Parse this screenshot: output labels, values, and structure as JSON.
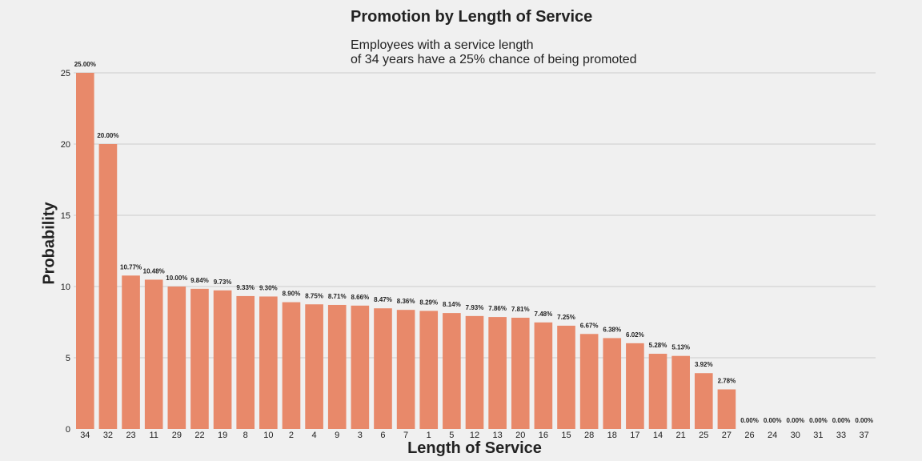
{
  "chart_data": {
    "type": "bar",
    "title": "Promotion by Length of Service",
    "subtitle_lines": [
      "Employees with a service length",
      "of 34 years have a 25% chance of being promoted"
    ],
    "xlabel": "Length of Service",
    "ylabel": "Probability",
    "ylim": [
      0,
      25
    ],
    "yticks": [
      0,
      5,
      10,
      15,
      20,
      25
    ],
    "grid": "horizontal",
    "bar_color": "#e8896a",
    "categories": [
      "34",
      "32",
      "23",
      "11",
      "29",
      "22",
      "19",
      "8",
      "10",
      "2",
      "4",
      "9",
      "3",
      "6",
      "7",
      "1",
      "5",
      "12",
      "13",
      "20",
      "16",
      "15",
      "28",
      "18",
      "17",
      "14",
      "21",
      "25",
      "27",
      "26",
      "24",
      "30",
      "31",
      "33",
      "37"
    ],
    "values": [
      25.0,
      20.0,
      10.77,
      10.48,
      10.0,
      9.84,
      9.73,
      9.33,
      9.3,
      8.9,
      8.75,
      8.71,
      8.66,
      8.47,
      8.36,
      8.29,
      8.14,
      7.93,
      7.86,
      7.81,
      7.48,
      7.25,
      6.67,
      6.38,
      6.02,
      5.28,
      5.13,
      3.92,
      2.78,
      0.0,
      0.0,
      0.0,
      0.0,
      0.0,
      0.0
    ],
    "data_labels": [
      "25.00%",
      "20.00%",
      "10.77%",
      "10.48%",
      "10.00%",
      "9.84%",
      "9.73%",
      "9.33%",
      "9.30%",
      "8.90%",
      "8.75%",
      "8.71%",
      "8.66%",
      "8.47%",
      "8.36%",
      "8.29%",
      "8.14%",
      "7.93%",
      "7.86%",
      "7.81%",
      "7.48%",
      "7.25%",
      "6.67%",
      "6.38%",
      "6.02%",
      "5.28%",
      "5.13%",
      "3.92%",
      "2.78%",
      "0.00%",
      "0.00%",
      "0.00%",
      "0.00%",
      "0.00%",
      "0.00%"
    ]
  }
}
